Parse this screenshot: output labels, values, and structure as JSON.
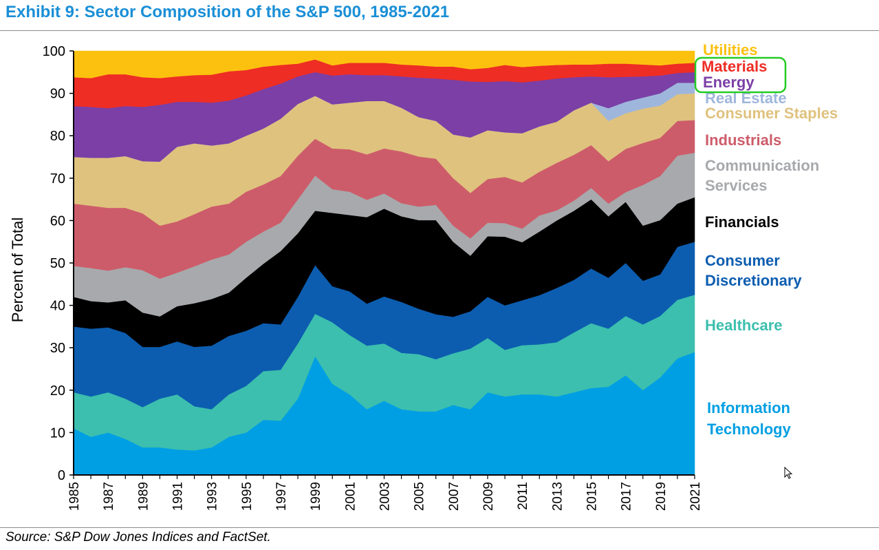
{
  "header": {
    "title": "Exhibit 9: Sector Composition of the S&P 500, 1985-2021"
  },
  "footer": {
    "source": "Source: S&P Dow Jones Indices and FactSet."
  },
  "chart_data": {
    "type": "area",
    "stacked": true,
    "ylabel": "Percent of Total",
    "xlabel": "",
    "ylim": [
      0,
      100
    ],
    "yticks": [
      0,
      10,
      20,
      30,
      40,
      50,
      60,
      70,
      80,
      90,
      100
    ],
    "xticks": [
      1985,
      1987,
      1989,
      1991,
      1993,
      1995,
      1997,
      1999,
      2001,
      2003,
      2005,
      2007,
      2009,
      2011,
      2013,
      2015,
      2017,
      2019,
      2021
    ],
    "x": [
      1985,
      1986,
      1987,
      1988,
      1989,
      1990,
      1991,
      1992,
      1993,
      1994,
      1995,
      1996,
      1997,
      1998,
      1999,
      2000,
      2001,
      2002,
      2003,
      2004,
      2005,
      2006,
      2007,
      2008,
      2009,
      2010,
      2011,
      2012,
      2013,
      2014,
      2015,
      2016,
      2017,
      2018,
      2019,
      2020,
      2021
    ],
    "boundaries_note": "cumulative upper boundary (percent) of each stacked band, bottom to top",
    "series": [
      {
        "name": "Information Technology",
        "label": "Information Technology",
        "color": "#009fe3",
        "upper": [
          11,
          9,
          10,
          8.5,
          6.5,
          6.5,
          6,
          5.8,
          6.5,
          9,
          10,
          13,
          12.8,
          18,
          28,
          21.5,
          19,
          15.5,
          17.5,
          15.5,
          15,
          15,
          16.5,
          15.5,
          19.5,
          18.5,
          19,
          19,
          18.5,
          19.5,
          20.5,
          20.8,
          23.5,
          20,
          23,
          27.5,
          29
        ]
      },
      {
        "name": "Healthcare",
        "label": "Healthcare",
        "color": "#3cbfae",
        "upper": [
          19.5,
          18.5,
          19.5,
          18,
          16,
          18,
          19,
          16.2,
          15.5,
          19,
          21,
          24.5,
          24.8,
          31,
          38,
          36,
          33,
          30.5,
          31,
          28.8,
          28.5,
          27.3,
          28.7,
          29.8,
          32.3,
          29.5,
          30.6,
          30.8,
          31.3,
          33.6,
          35.8,
          34.5,
          37.5,
          35.5,
          37.5,
          41.3,
          42.5
        ]
      },
      {
        "name": "Consumer Discretionary",
        "label": "Consumer Discretionary",
        "color": "#0c5db0",
        "upper": [
          35,
          34.5,
          34.8,
          33.5,
          30.2,
          30.2,
          31.5,
          30.2,
          30.5,
          32.8,
          34,
          35.8,
          35.5,
          42,
          49.5,
          44.5,
          43.3,
          40.4,
          42.1,
          40.8,
          39.2,
          37.9,
          37.3,
          38.6,
          42,
          40,
          41.2,
          42.4,
          44.1,
          46,
          48.7,
          46.5,
          50,
          45.8,
          47.3,
          53.8,
          55
        ]
      },
      {
        "name": "Financials",
        "label": "Financials",
        "color": "#000000",
        "upper": [
          42,
          41,
          40.7,
          41.2,
          38.3,
          37.4,
          39.8,
          40.5,
          41.5,
          43,
          46.5,
          49.8,
          52.8,
          57,
          62.3,
          61.8,
          61.3,
          60.8,
          62.8,
          61,
          60.1,
          60.1,
          55,
          51.7,
          56.3,
          56.2,
          54.9,
          57.4,
          60,
          62.3,
          65,
          61,
          64.4,
          58.8,
          60.1,
          64,
          65.5
        ]
      },
      {
        "name": "Communication Services",
        "label": "Communication Services",
        "color": "#a7a9ac",
        "upper": [
          49.3,
          48.8,
          48.2,
          49,
          48.3,
          46.3,
          47.7,
          49.2,
          50.8,
          52,
          55,
          57.4,
          59.5,
          65,
          70.6,
          67.4,
          66.8,
          64.9,
          66.4,
          64.1,
          63.3,
          63.7,
          58.8,
          55.8,
          59.5,
          59.4,
          58.1,
          61.2,
          62.4,
          64.7,
          67.7,
          64,
          66.7,
          68.4,
          70.5,
          75.3,
          76
        ]
      },
      {
        "name": "Industrials",
        "label": "Industrials",
        "color": "#cd5c6a",
        "upper": [
          64,
          63.5,
          63,
          63,
          61.7,
          58.8,
          59.8,
          61.5,
          63.3,
          64,
          66.8,
          68.5,
          70.5,
          75.3,
          79.3,
          77,
          76.8,
          75.6,
          77,
          76.3,
          75.1,
          74.6,
          70,
          66.5,
          69.8,
          70.3,
          69,
          71.5,
          73.6,
          75.5,
          77.8,
          74,
          76.9,
          78.3,
          79.5,
          83.5,
          83.7
        ]
      },
      {
        "name": "Consumer Staples",
        "label": "Consumer Staples",
        "color": "#dfc27e",
        "upper": [
          75,
          74.8,
          74.8,
          75.2,
          74,
          73.9,
          77.4,
          78.2,
          77.7,
          78.2,
          80,
          81.7,
          84,
          87.5,
          89.4,
          87.4,
          87.8,
          88.2,
          88.2,
          86.6,
          84.4,
          83.5,
          80.3,
          79.6,
          81.3,
          80.8,
          80.6,
          82.2,
          83.3,
          86,
          87.8,
          83.5,
          85.3,
          86.4,
          87.1,
          89.8,
          90
        ]
      },
      {
        "name": "Real Estate",
        "label": "Real Estate",
        "color": "#9fb6dc",
        "upper": [
          75,
          74.8,
          74.8,
          75.2,
          74,
          73.9,
          77.4,
          78.2,
          77.7,
          78.2,
          80,
          81.7,
          84,
          87.5,
          89.4,
          87.4,
          87.8,
          88.2,
          88.2,
          86.6,
          84.4,
          83.5,
          80.3,
          79.6,
          81.3,
          80.8,
          80.6,
          82.2,
          83.3,
          86,
          87.8,
          86.5,
          88,
          89,
          90,
          92.5,
          92.5
        ]
      },
      {
        "name": "Energy",
        "label": "Energy",
        "color": "#7b3fa6",
        "upper": [
          87,
          86.8,
          86.5,
          87,
          86.8,
          87.3,
          88,
          88,
          87.8,
          88.3,
          89.5,
          91,
          92.3,
          94,
          95,
          94.2,
          94.5,
          94.3,
          94.3,
          94,
          93.7,
          93.5,
          93.2,
          92.8,
          92.7,
          92.9,
          92.6,
          93,
          93.5,
          93.8,
          94,
          93.8,
          93.9,
          94,
          94.2,
          94.8,
          95
        ]
      },
      {
        "name": "Materials",
        "label": "Materials",
        "color": "#ee2d24",
        "upper": [
          93.8,
          93.6,
          94.5,
          94.5,
          93.8,
          93.6,
          94,
          94.3,
          94.4,
          95.2,
          95.5,
          96.3,
          96.7,
          97,
          98,
          96.6,
          97.2,
          97.2,
          97.2,
          96.8,
          96.6,
          96.3,
          96.3,
          95.7,
          96,
          96.7,
          96.2,
          96.5,
          96.7,
          96.8,
          96.8,
          97,
          97,
          96.8,
          96.6,
          97,
          97.2
        ]
      },
      {
        "name": "Utilities",
        "label": "Utilities",
        "color": "#fcc10f",
        "upper": [
          100,
          100,
          100,
          100,
          100,
          100,
          100,
          100,
          100,
          100,
          100,
          100,
          100,
          100,
          100,
          100,
          100,
          100,
          100,
          100,
          100,
          100,
          100,
          100,
          100,
          100,
          100,
          100,
          100,
          100,
          100,
          100,
          100,
          100,
          100,
          100,
          100
        ]
      }
    ],
    "legend_labels": [
      {
        "text": "Utilities",
        "color": "#fcc10f"
      },
      {
        "text": "Materials",
        "color": "#ee2d24"
      },
      {
        "text": "Energy",
        "color": "#7b3fa6"
      },
      {
        "text": "Real Estate",
        "color": "#9fb6dc"
      },
      {
        "text": "Consumer Staples",
        "color": "#dfc27e"
      },
      {
        "text": "Industrials",
        "color": "#cd5c6a"
      },
      {
        "text": "Communication",
        "color": "#a7a9ac"
      },
      {
        "text": "Services",
        "color": "#a7a9ac"
      },
      {
        "text": "Financials",
        "color": "#000000"
      },
      {
        "text": "Consumer",
        "color": "#0c5db0"
      },
      {
        "text": "Discretionary",
        "color": "#0c5db0"
      },
      {
        "text": "Healthcare",
        "color": "#3cbfae"
      },
      {
        "text": "Information",
        "color": "#009fe3"
      },
      {
        "text": "Technology",
        "color": "#009fe3"
      }
    ],
    "highlight": {
      "target": "Materials / Energy",
      "color": "#22cc22"
    }
  }
}
